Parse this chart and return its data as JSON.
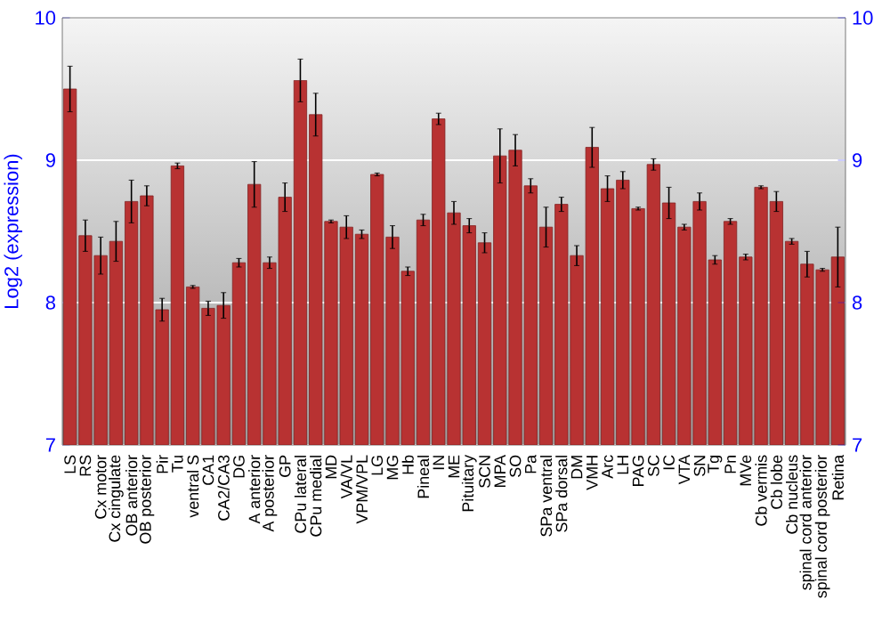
{
  "chart_data": {
    "type": "bar",
    "ylabel": "Log2 (expression)",
    "categories": [
      "LS",
      "RS",
      "Cx motor",
      "Cx cingulate",
      "OB anterior",
      "OB posterior",
      "Pir",
      "Tu",
      "ventral S",
      "CA1",
      "CA2/CA3",
      "DG",
      "A anterior",
      "A posterior",
      "GP",
      "CPu lateral",
      "CPu medial",
      "MD",
      "VA/VL",
      "VPM/VPL",
      "LG",
      "MG",
      "Hb",
      "Pineal",
      "IN",
      "ME",
      "Pituitary",
      "SCN",
      "MPA",
      "SO",
      "Pa",
      "SPa ventral",
      "SPa dorsal",
      "DM",
      "VMH",
      "Arc",
      "LH",
      "PAG",
      "SC",
      "IC",
      "VTA",
      "SN",
      "Tg",
      "Pn",
      "MVe",
      "Cb vermis",
      "Cb lobe",
      "Cb nucleus",
      "spinal cord anterior",
      "spinal cord posterior",
      "Retina"
    ],
    "values": [
      9.5,
      8.47,
      8.33,
      8.43,
      8.71,
      8.75,
      7.95,
      8.96,
      8.11,
      7.96,
      7.98,
      8.28,
      8.83,
      8.28,
      8.74,
      9.56,
      9.32,
      8.57,
      8.53,
      8.48,
      8.9,
      8.46,
      8.22,
      8.58,
      9.29,
      8.63,
      8.54,
      8.42,
      9.03,
      9.07,
      8.82,
      8.53,
      8.69,
      8.33,
      9.09,
      8.8,
      8.86,
      8.66,
      8.97,
      8.7,
      8.53,
      8.71,
      8.3,
      8.57,
      8.32,
      8.81,
      8.71,
      8.43,
      8.27,
      8.23,
      8.32
    ],
    "errors": [
      0.16,
      0.11,
      0.13,
      0.14,
      0.15,
      0.07,
      0.08,
      0.02,
      0.01,
      0.05,
      0.09,
      0.03,
      0.16,
      0.04,
      0.1,
      0.15,
      0.15,
      0.01,
      0.08,
      0.03,
      0.01,
      0.08,
      0.03,
      0.04,
      0.04,
      0.08,
      0.05,
      0.07,
      0.19,
      0.11,
      0.05,
      0.14,
      0.05,
      0.07,
      0.14,
      0.09,
      0.06,
      0.01,
      0.04,
      0.11,
      0.02,
      0.06,
      0.03,
      0.02,
      0.02,
      0.01,
      0.07,
      0.02,
      0.09,
      0.01,
      0.21
    ],
    "color": "#b83232",
    "ylim": [
      7,
      10
    ],
    "yticks": [
      7,
      8,
      9,
      10
    ],
    "y2lim": [
      7,
      10
    ],
    "y2ticks": [
      7,
      8,
      9,
      10
    ],
    "grid": "y",
    "legend": false
  }
}
